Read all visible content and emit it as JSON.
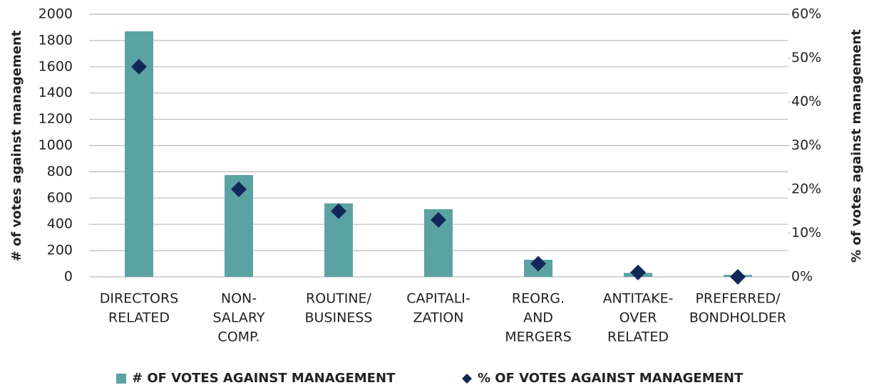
{
  "chart_data": {
    "type": "bar_scatter",
    "categories": [
      [
        "DIRECTORS",
        "RELATED"
      ],
      [
        "NON-",
        "SALARY",
        "COMP."
      ],
      [
        "ROUTINE/",
        "BUSINESS"
      ],
      [
        "CAPITALI-",
        "ZATION"
      ],
      [
        "REORG.",
        "AND",
        "MERGERS"
      ],
      [
        "ANTITAKE-",
        "OVER",
        "RELATED"
      ],
      [
        "PREFERRED/",
        "BONDHOLDER"
      ]
    ],
    "series": [
      {
        "name": "# OF VOTES AGAINST MANAGEMENT",
        "color": "#5ba3a3",
        "type": "bar",
        "values": [
          1870,
          775,
          560,
          515,
          130,
          30,
          15
        ]
      },
      {
        "name": "% OF VOTES AGAINST MANAGEMENT",
        "color": "#13275a",
        "type": "scatter",
        "axis": "y2",
        "values": [
          48,
          20,
          15,
          13,
          3,
          1,
          0
        ]
      }
    ],
    "ylabel": "# of votes against management",
    "y2label": "% of votes against management",
    "ylim": [
      0,
      2000
    ],
    "yticks": [
      0,
      200,
      400,
      600,
      800,
      1000,
      1200,
      1400,
      1600,
      1800,
      2000
    ],
    "y2lim": [
      0,
      60
    ],
    "y2ticks": [
      {
        "value": 0,
        "label": "0%"
      },
      {
        "value": 10,
        "label": "10%"
      },
      {
        "value": 20,
        "label": "20%"
      },
      {
        "value": 30,
        "label": "30%"
      },
      {
        "value": 40,
        "label": "40%"
      },
      {
        "value": 50,
        "label": "50%"
      },
      {
        "value": 60,
        "label": "60%"
      }
    ],
    "grid": true,
    "legend": "bottom"
  }
}
